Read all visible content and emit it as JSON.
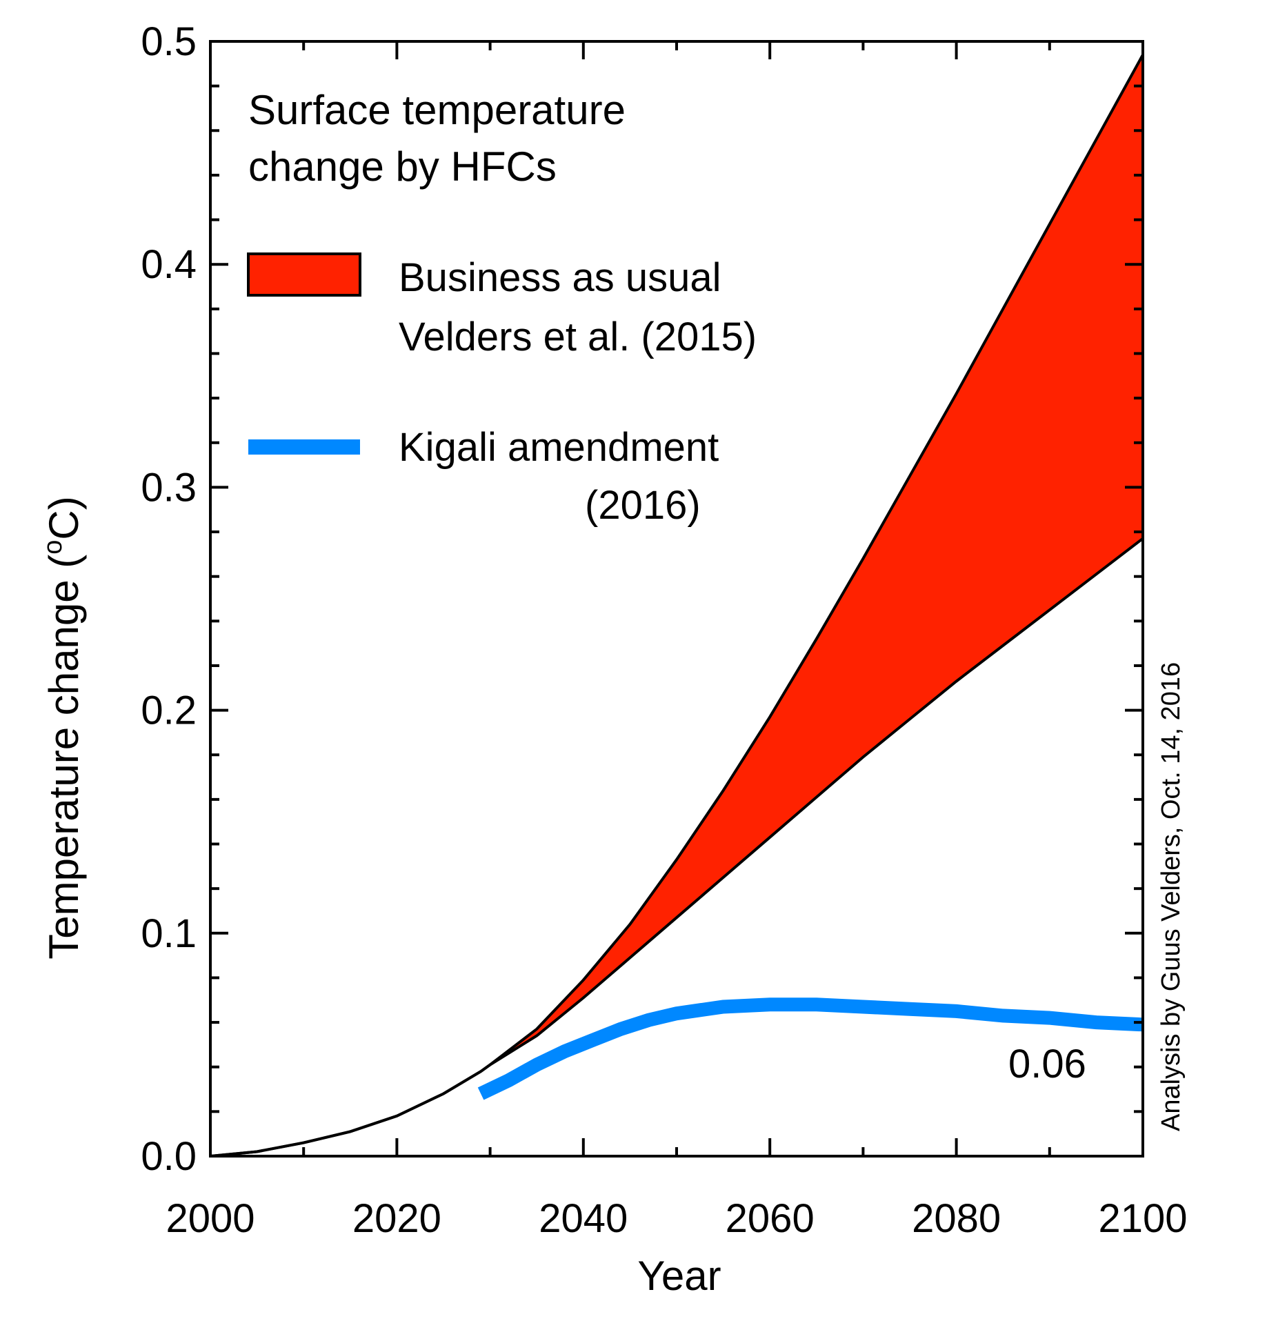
{
  "chart_data": {
    "type": "area",
    "title_lines": [
      "Surface temperature",
      "change by HFCs"
    ],
    "xlabel": "Year",
    "ylabel": "Temperature change (",
    "ylabel_degree": "o",
    "ylabel_unit": "C)",
    "xlim": [
      2000,
      2100
    ],
    "ylim": [
      0.0,
      0.5
    ],
    "xticks": [
      "2000",
      "2020",
      "2040",
      "2060",
      "2080",
      "2100"
    ],
    "yticks": [
      "0.0",
      "0.1",
      "0.2",
      "0.3",
      "0.4",
      "0.5"
    ],
    "grid": false,
    "legend_position": "top-left",
    "credit": "Analysis by Guus Velders, Oct. 14, 2016",
    "end_annotation": "0.06",
    "series": [
      {
        "name": "Business as usual upper",
        "x": [
          2000,
          2005,
          2010,
          2015,
          2020,
          2025,
          2029,
          2030,
          2035,
          2040,
          2045,
          2050,
          2055,
          2060,
          2065,
          2070,
          2075,
          2080,
          2085,
          2090,
          2095,
          2100
        ],
        "y": [
          0.0,
          0.002,
          0.006,
          0.011,
          0.018,
          0.028,
          0.038,
          0.041,
          0.057,
          0.079,
          0.104,
          0.133,
          0.164,
          0.197,
          0.232,
          0.268,
          0.305,
          0.342,
          0.38,
          0.418,
          0.456,
          0.494
        ]
      },
      {
        "name": "Business as usual lower",
        "x": [
          2000,
          2005,
          2010,
          2015,
          2020,
          2025,
          2029,
          2030,
          2035,
          2040,
          2045,
          2050,
          2055,
          2060,
          2065,
          2070,
          2075,
          2080,
          2085,
          2090,
          2095,
          2100
        ],
        "y": [
          0.0,
          0.002,
          0.006,
          0.011,
          0.018,
          0.028,
          0.038,
          0.041,
          0.054,
          0.071,
          0.089,
          0.107,
          0.125,
          0.143,
          0.161,
          0.179,
          0.196,
          0.213,
          0.229,
          0.245,
          0.261,
          0.277
        ]
      },
      {
        "name": "Kigali amendment",
        "x": [
          2029,
          2032,
          2035,
          2038,
          2041,
          2044,
          2047,
          2050,
          2055,
          2060,
          2065,
          2070,
          2075,
          2080,
          2085,
          2090,
          2095,
          2100
        ],
        "y": [
          0.028,
          0.034,
          0.041,
          0.047,
          0.052,
          0.057,
          0.061,
          0.064,
          0.067,
          0.068,
          0.068,
          0.067,
          0.066,
          0.065,
          0.063,
          0.062,
          0.06,
          0.059
        ]
      }
    ],
    "colors": {
      "bau_fill": "#ff2200",
      "kigali": "#0088ff",
      "line": "#000000"
    },
    "legend": [
      {
        "lines": [
          "Business as usual",
          "Velders et al. (2015)"
        ],
        "swatch": "bau_fill"
      },
      {
        "lines": [
          "Kigali amendment",
          "(2016)"
        ],
        "swatch": "kigali"
      }
    ]
  }
}
